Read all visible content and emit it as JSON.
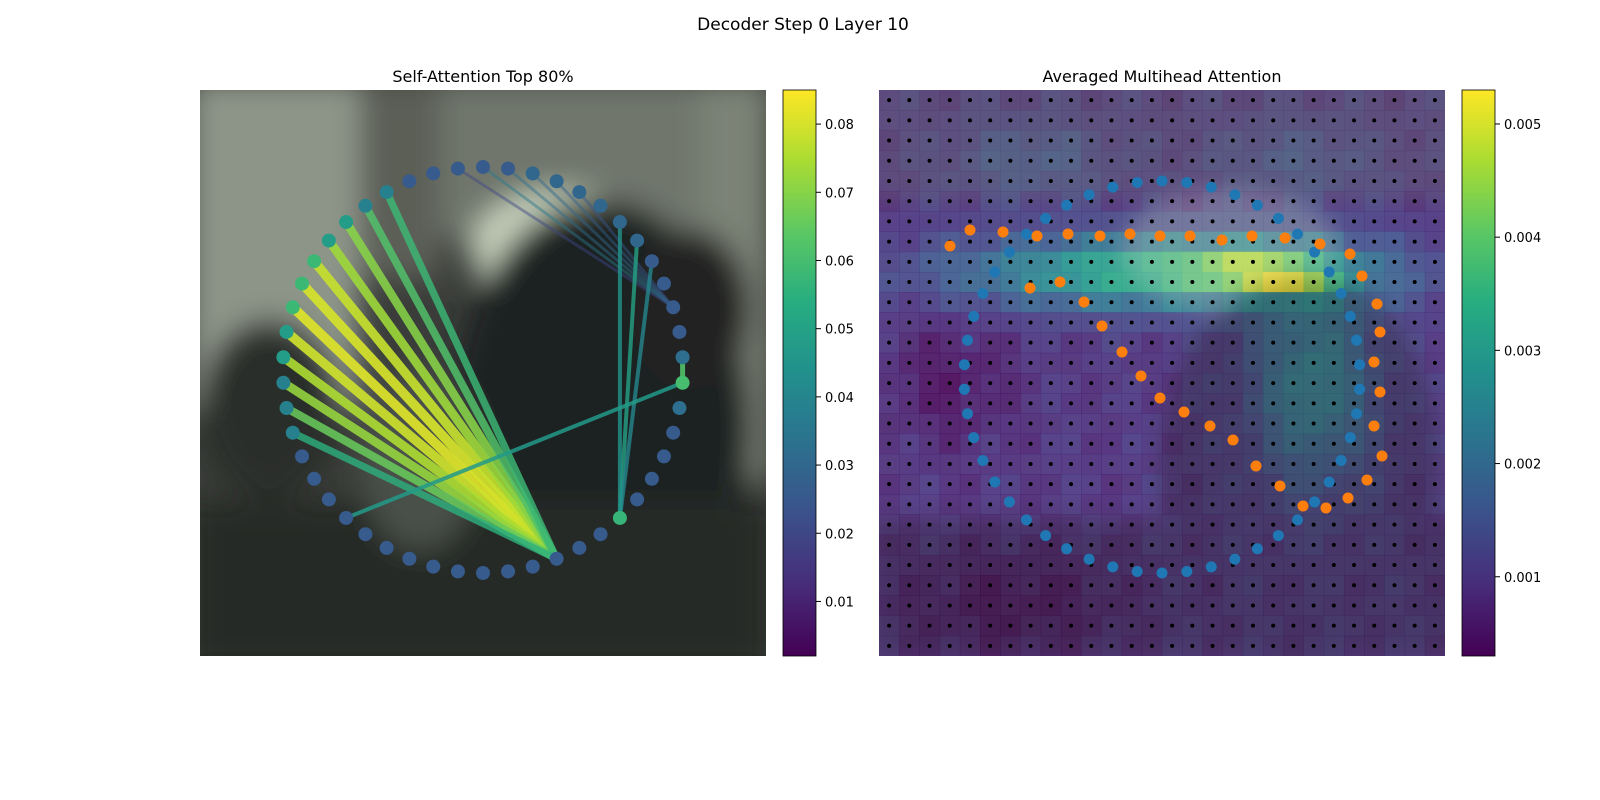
{
  "figure": {
    "title": "Decoder Step 0 Layer 10"
  },
  "chart_data": [
    {
      "type": "scatter",
      "title": "Self-Attention Top 80%",
      "xlabel": "",
      "ylabel": "",
      "axes_visible": false,
      "background": "blurred camera frame",
      "colormap": "viridis",
      "colorbar": {
        "range": [
          0.002,
          0.085
        ],
        "ticks": [
          0.01,
          0.02,
          0.03,
          0.04,
          0.05,
          0.06,
          0.07,
          0.08
        ]
      },
      "node_count": 50,
      "edge_values": [
        0.081,
        0.08,
        0.079,
        0.078,
        0.075,
        0.073,
        0.072,
        0.07,
        0.066,
        0.062,
        0.058,
        0.055,
        0.05,
        0.047,
        0.045,
        0.04,
        0.035,
        0.032,
        0.03,
        0.028,
        0.025,
        0.02
      ]
    },
    {
      "type": "heatmap",
      "title": "Averaged Multihead Attention",
      "xlabel": "",
      "ylabel": "",
      "axes_visible": false,
      "colormap": "viridis",
      "colorbar": {
        "range": [
          0.0003,
          0.0053
        ],
        "ticks": [
          0.001,
          0.002,
          0.003,
          0.004,
          0.005
        ]
      },
      "grid_size": [
        28,
        28
      ],
      "series": [
        {
          "color": "#1f77b4",
          "point_count": 50
        },
        {
          "color": "#ff7f0e",
          "point_count": 37
        },
        {
          "color": "#000000",
          "point_count": 784
        }
      ]
    }
  ]
}
